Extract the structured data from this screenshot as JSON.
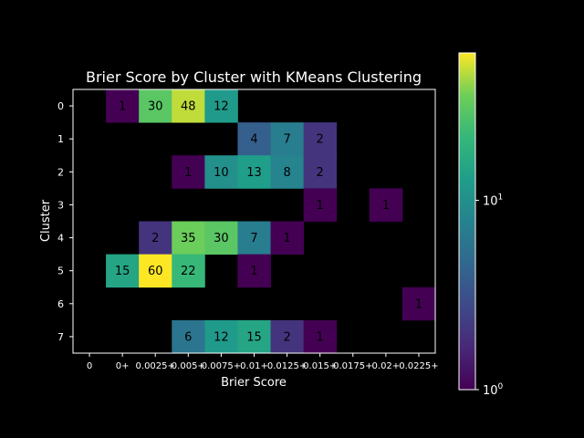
{
  "chart_data": {
    "type": "heatmap",
    "title": "Brier Score by Cluster with KMeans Clustering",
    "xlabel": "Brier Score",
    "ylabel": "Cluster",
    "x_categories": [
      "0",
      "0+",
      "0.0025+",
      "0.005+",
      "0.0075+",
      "0.01+",
      "0.0125+",
      "0.015+",
      "0.0175+",
      "0.02+",
      "0.0225+"
    ],
    "y_categories": [
      "0",
      "1",
      "2",
      "3",
      "4",
      "5",
      "6",
      "7"
    ],
    "values": [
      [
        null,
        1,
        30,
        48,
        12,
        null,
        null,
        null,
        null,
        null,
        null
      ],
      [
        null,
        null,
        null,
        null,
        null,
        4,
        7,
        2,
        null,
        null,
        null
      ],
      [
        null,
        null,
        null,
        1,
        10,
        13,
        8,
        2,
        null,
        null,
        null
      ],
      [
        null,
        null,
        null,
        null,
        null,
        null,
        null,
        1,
        null,
        1,
        null
      ],
      [
        null,
        null,
        2,
        35,
        30,
        7,
        1,
        null,
        null,
        null,
        null
      ],
      [
        null,
        15,
        60,
        22,
        null,
        1,
        null,
        null,
        null,
        null,
        null
      ],
      [
        null,
        null,
        null,
        null,
        null,
        null,
        null,
        null,
        null,
        null,
        1
      ],
      [
        null,
        null,
        null,
        6,
        12,
        15,
        2,
        1,
        null,
        null,
        null
      ]
    ],
    "colormap": "viridis",
    "color_scale": "log",
    "colorbar": {
      "range": [
        1,
        60
      ],
      "ticks": [
        {
          "value": 1,
          "base": "10",
          "exp": "0"
        },
        {
          "value": 10,
          "base": "10",
          "exp": "1"
        }
      ]
    },
    "grid": false,
    "background": "#000000",
    "foreground": "#ffffff"
  }
}
